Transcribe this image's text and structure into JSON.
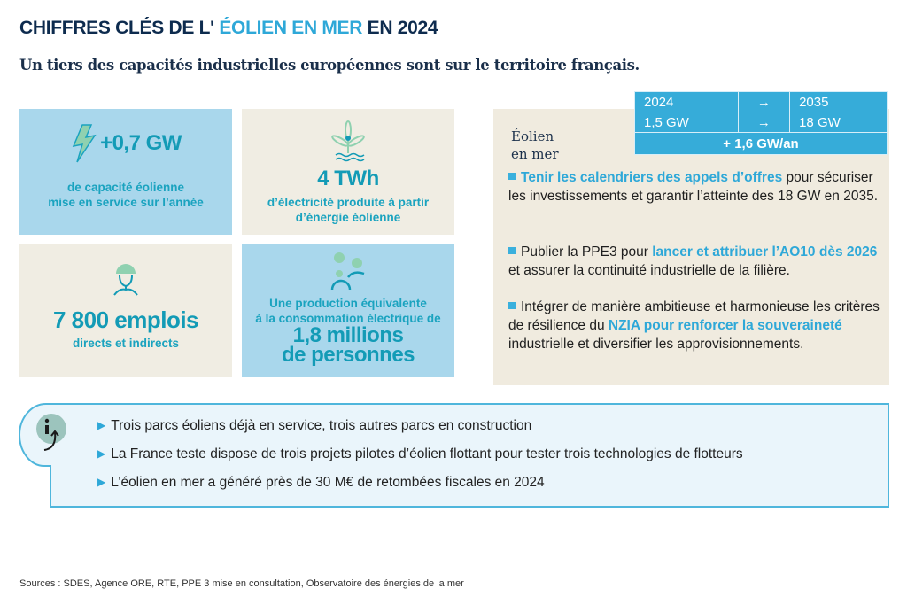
{
  "title": {
    "part1": "CHIFFRES CLÉS DE L' ",
    "highlight": "ÉOLIEN EN MER",
    "part2": " EN 2024"
  },
  "subtitle": "Un tiers des capacités industrielles européennes sont sur le territoire français.",
  "cards": [
    {
      "icon": "lightning-icon",
      "value": "+0,7 GW",
      "line1": "de capacité éolienne",
      "line2": "mise en service sur l’année"
    },
    {
      "icon": "wind-turbine-icon",
      "value": "4 TWh",
      "line1": "d’électricité produite à partir",
      "line2": "d’énergie éolienne"
    },
    {
      "icon": "worker-icon",
      "value": "7 800 emplois",
      "line1": "directs et indirects"
    },
    {
      "icon": "people-icon",
      "line1": "Une production équivalente",
      "line2": "à la consommation électrique de",
      "value1": "1,8 millions",
      "value2": "de personnes"
    }
  ],
  "right": {
    "label1": "Éolien",
    "label2": "en mer",
    "table": {
      "r1": [
        "2024",
        "→",
        "2035"
      ],
      "r2": [
        "1,5 GW",
        "→",
        "18 GW"
      ],
      "total": "+ 1,6 GW/an"
    },
    "bullets": [
      {
        "hl": "Tenir les calendriers des appels d’offres",
        "rest": " pour sécuriser les investissements et garantir l’atteinte des 18 GW en 2035."
      },
      {
        "pre": "Publier la PPE3 pour ",
        "hl": "lancer et attribuer l’AO10 dès 2026",
        "rest": " et assurer la continuité industrielle de la filière."
      },
      {
        "pre": "Intégrer de manière ambitieuse et harmonieuse les critères de résilience du ",
        "hl": "NZIA pour renforcer la souveraineté",
        "rest": " industrielle et diversifier les approvisionnements."
      }
    ]
  },
  "info": {
    "icon": "info-icon",
    "items": [
      "Trois parcs éoliens déjà en service, trois autres parcs en construction",
      "La France teste dispose de trois projets pilotes d’éolien flottant pour tester trois technologies de flotteurs",
      "L’éolien en mer a généré près de 30 M€ de retombées fiscales en 2024"
    ]
  },
  "sources": "Sources : SDES, Agence ORE, RTE, PPE 3 mise en consultation, Observatoire des énergies de la mer"
}
